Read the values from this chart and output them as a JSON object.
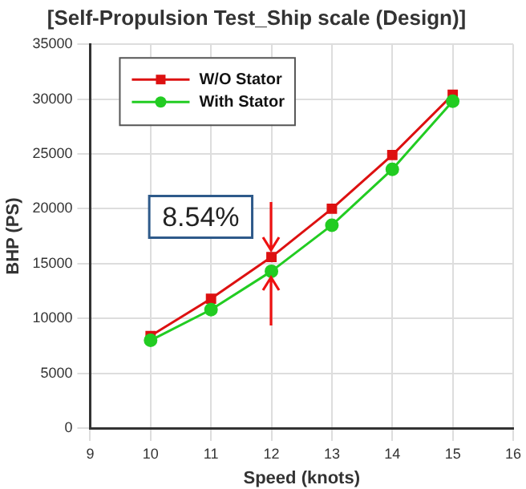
{
  "chart_data": {
    "type": "line",
    "title": "[Self-Propulsion Test_Ship scale (Design)]",
    "xlabel": "Speed (knots)",
    "ylabel": "BHP (PS)",
    "x": [
      10,
      11,
      12,
      13,
      14,
      15
    ],
    "series": [
      {
        "name": "W/O Stator",
        "color": "#dd1111",
        "values": [
          8400,
          11800,
          15600,
          20000,
          24900,
          30400
        ],
        "marker": "square"
      },
      {
        "name": "With Stator",
        "color": "#22cc22",
        "values": [
          8000,
          10800,
          14300,
          18500,
          23600,
          29800
        ],
        "marker": "circle"
      }
    ],
    "xlim": [
      9,
      16
    ],
    "xticks": [
      9,
      10,
      11,
      12,
      13,
      14,
      15,
      16
    ],
    "ylim": [
      0,
      35000
    ],
    "yticks": [
      0,
      5000,
      10000,
      15000,
      20000,
      25000,
      30000,
      35000
    ],
    "grid": true,
    "legend": "top left",
    "line_style": "solid",
    "annotations": [
      {
        "text": "8.54%",
        "x": 12,
        "y": 15600
      }
    ]
  }
}
